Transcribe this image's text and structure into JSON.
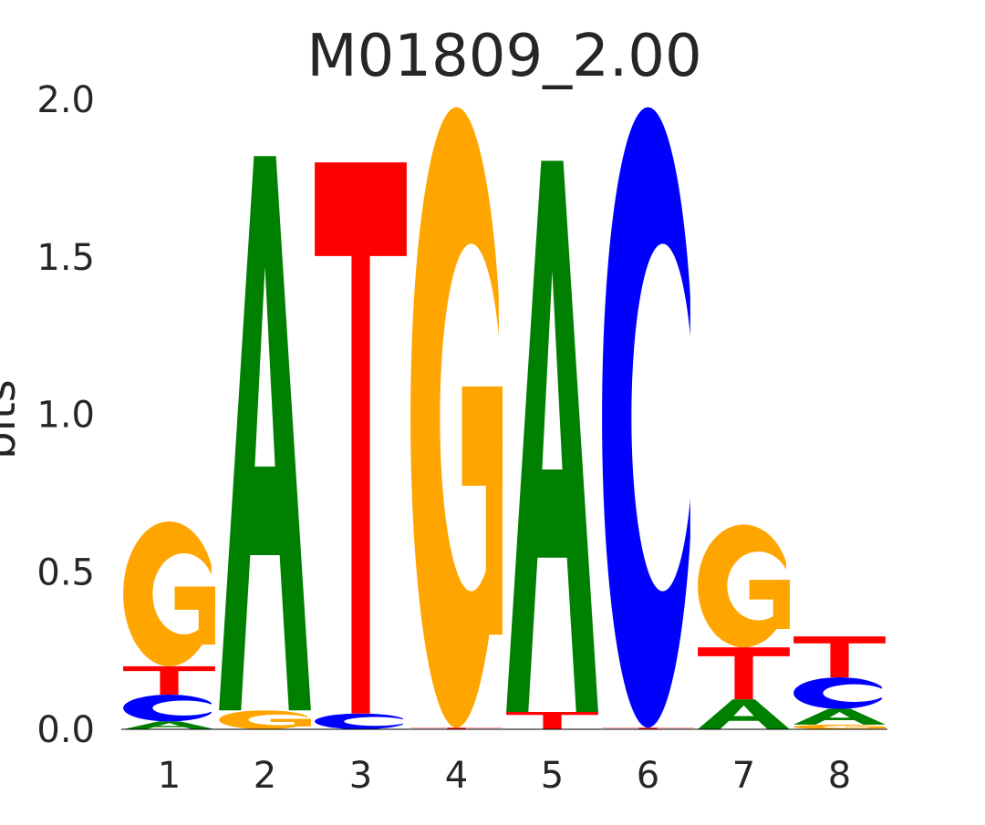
{
  "chart_data": {
    "type": "sequence-logo",
    "title": "M01809_2.00",
    "xlabel": "",
    "ylabel": "bits",
    "ylim": [
      0,
      2.0
    ],
    "yticks": [
      "0.0",
      "0.5",
      "1.0",
      "1.5",
      "2.0"
    ],
    "grid": false,
    "legend": "none",
    "positions": [
      "1",
      "2",
      "3",
      "4",
      "5",
      "6",
      "7",
      "8"
    ],
    "colors": {
      "A": "#008000",
      "C": "#0000ff",
      "G": "#ffa500",
      "T": "#ff0000"
    },
    "stacks": [
      [
        {
          "letter": "A",
          "height": 0.025
        },
        {
          "letter": "C",
          "height": 0.085
        },
        {
          "letter": "T",
          "height": 0.09
        },
        {
          "letter": "G",
          "height": 0.46
        }
      ],
      [
        {
          "letter": "G",
          "height": 0.06
        },
        {
          "letter": "A",
          "height": 1.76
        }
      ],
      [
        {
          "letter": "C",
          "height": 0.05
        },
        {
          "letter": "T",
          "height": 1.75
        }
      ],
      [
        {
          "letter": "T",
          "height": 0.005
        },
        {
          "letter": "G",
          "height": 1.97
        }
      ],
      [
        {
          "letter": "T",
          "height": 0.055
        },
        {
          "letter": "A",
          "height": 1.75
        }
      ],
      [
        {
          "letter": "T",
          "height": 0.005
        },
        {
          "letter": "C",
          "height": 1.97
        }
      ],
      [
        {
          "letter": "A",
          "height": 0.095
        },
        {
          "letter": "T",
          "height": 0.165
        },
        {
          "letter": "G",
          "height": 0.39
        }
      ],
      [
        {
          "letter": "G",
          "height": 0.015
        },
        {
          "letter": "A",
          "height": 0.05
        },
        {
          "letter": "C",
          "height": 0.1
        },
        {
          "letter": "T",
          "height": 0.13
        }
      ]
    ]
  }
}
